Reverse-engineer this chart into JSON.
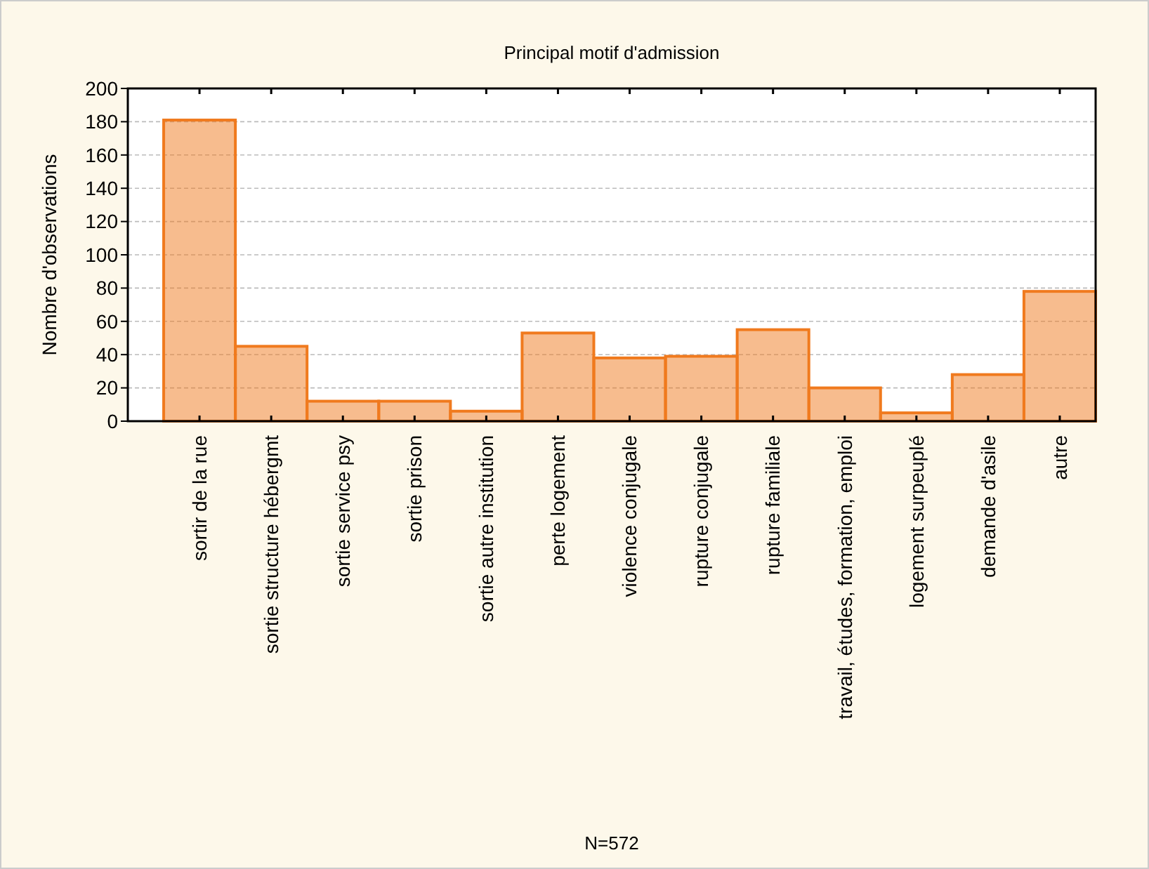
{
  "chart_data": {
    "type": "bar",
    "title": "Principal motif  d'admission",
    "annotations": [
      "N=572"
    ],
    "ylabel": "Nombre d'observations",
    "categories": [
      "sortir de la rue",
      "sortie structure hébergmt",
      "sortie service psy",
      "sortie prison",
      "sortie autre institution",
      "perte logement",
      "violence conjugale",
      "rupture conjugale",
      "rupture familiale",
      "travail, études, formation, emploi",
      "logement surpeuplé",
      "demande d'asile",
      "autre"
    ],
    "values": [
      181,
      45,
      12,
      12,
      6,
      53,
      38,
      39,
      55,
      20,
      5,
      28,
      78
    ],
    "color": "#f07a1e",
    "ylim": [
      0,
      200
    ],
    "yticks": [
      0,
      20,
      40,
      60,
      80,
      100,
      120,
      140,
      160,
      180,
      200
    ],
    "grid": "y"
  }
}
